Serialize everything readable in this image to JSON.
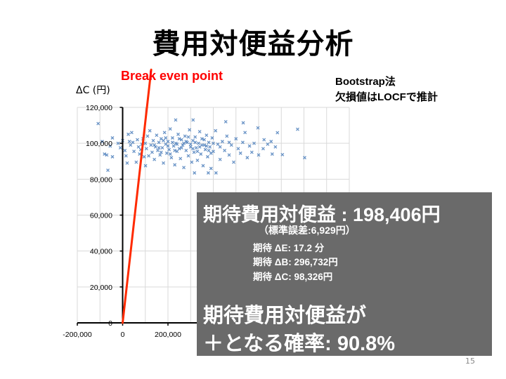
{
  "slide": {
    "title": "費用対便益分析",
    "page_number": "15",
    "annotation_break_even": "Break even point",
    "note_line1": "Bootstrap法",
    "note_line2": "欠損値はLOCFで推計"
  },
  "result_box": {
    "expected_cb": "期待費用対便益 : 198,406円",
    "std_error": "（標準誤差:6,929円）",
    "expected_de": "期待 ΔE: 17.2 分",
    "expected_db": "期待 ΔB: 296,732円",
    "expected_dc": "期待 ΔC: 98,326円",
    "prob_line1": "期待費用対便益が",
    "prob_line2": "＋となる確率: 90.8%",
    "background_color": "#6a6a6a"
  },
  "chart_data": {
    "type": "scatter",
    "ylabel": "ΔC (円)",
    "xlabel": "",
    "xlim": [
      -200000,
      1000000
    ],
    "ylim": [
      0,
      120000
    ],
    "x_ticks": [
      "-200,000",
      "0",
      "200,000"
    ],
    "y_ticks": [
      "0",
      "20,000",
      "40,000",
      "60,000",
      "80,000",
      "100,000",
      "120,000"
    ],
    "grid": true,
    "marker": "x",
    "point_color": "#4f81bd",
    "break_even_line": {
      "color": "#ff2a00",
      "from": [
        0,
        0
      ],
      "to": [
        126000,
        141000
      ]
    },
    "points": [
      [
        -108000,
        111000
      ],
      [
        -65000,
        85000
      ],
      [
        772000,
        107800
      ],
      [
        803000,
        92000
      ],
      [
        705000,
        93700
      ],
      [
        683000,
        105900
      ],
      [
        674000,
        98000
      ],
      [
        311000,
        113000
      ],
      [
        234000,
        113000
      ],
      [
        455000,
        112000
      ],
      [
        532000,
        111400
      ],
      [
        317000,
        83500
      ],
      [
        378000,
        83500
      ],
      [
        412000,
        83500
      ],
      [
        101000,
        87500
      ],
      [
        624000,
        102000
      ],
      [
        655000,
        101000
      ],
      [
        597000,
        108600
      ],
      [
        -90000,
        101000
      ],
      [
        -80000,
        94000
      ],
      [
        -70000,
        93500
      ],
      [
        -55000,
        98500
      ],
      [
        -45000,
        103000
      ],
      [
        -45000,
        92500
      ],
      [
        -20000,
        100000
      ],
      [
        -10000,
        97500
      ],
      [
        0,
        101500
      ],
      [
        10000,
        96000
      ],
      [
        15000,
        93000
      ],
      [
        20000,
        89000
      ],
      [
        25000,
        105000
      ],
      [
        30000,
        101000
      ],
      [
        35000,
        99000
      ],
      [
        40000,
        106000
      ],
      [
        45000,
        100500
      ],
      [
        50000,
        95500
      ],
      [
        60000,
        89500
      ],
      [
        65000,
        102000
      ],
      [
        70000,
        98000
      ],
      [
        75000,
        94000
      ],
      [
        80000,
        96500
      ],
      [
        85000,
        99500
      ],
      [
        90000,
        102500
      ],
      [
        95000,
        92500
      ],
      [
        100000,
        100000
      ],
      [
        105000,
        97000
      ],
      [
        110000,
        104000
      ],
      [
        115000,
        93000
      ],
      [
        120000,
        107000
      ],
      [
        125000,
        99000
      ],
      [
        130000,
        95000
      ],
      [
        135000,
        101500
      ],
      [
        140000,
        91000
      ],
      [
        145000,
        98000
      ],
      [
        150000,
        104500
      ],
      [
        155000,
        96000
      ],
      [
        160000,
        100500
      ],
      [
        165000,
        93500
      ],
      [
        170000,
        102500
      ],
      [
        175000,
        97500
      ],
      [
        180000,
        89000
      ],
      [
        185000,
        106000
      ],
      [
        190000,
        99500
      ],
      [
        195000,
        94500
      ],
      [
        200000,
        101000
      ],
      [
        205000,
        96500
      ],
      [
        210000,
        108000
      ],
      [
        215000,
        92000
      ],
      [
        220000,
        103000
      ],
      [
        225000,
        98500
      ],
      [
        230000,
        88000
      ],
      [
        235000,
        100000
      ],
      [
        240000,
        95500
      ],
      [
        245000,
        105000
      ],
      [
        250000,
        97000
      ],
      [
        255000,
        91500
      ],
      [
        260000,
        102000
      ],
      [
        265000,
        99000
      ],
      [
        270000,
        86500
      ],
      [
        275000,
        104000
      ],
      [
        280000,
        96000
      ],
      [
        285000,
        100500
      ],
      [
        290000,
        93000
      ],
      [
        295000,
        107500
      ],
      [
        300000,
        98000
      ],
      [
        305000,
        89500
      ],
      [
        310000,
        101500
      ],
      [
        315000,
        95000
      ],
      [
        320000,
        103500
      ],
      [
        325000,
        97500
      ],
      [
        330000,
        90500
      ],
      [
        335000,
        100000
      ],
      [
        340000,
        106500
      ],
      [
        345000,
        94000
      ],
      [
        350000,
        99000
      ],
      [
        355000,
        87500
      ],
      [
        360000,
        102000
      ],
      [
        365000,
        96500
      ],
      [
        370000,
        104500
      ],
      [
        375000,
        92500
      ],
      [
        380000,
        100500
      ],
      [
        385000,
        98000
      ],
      [
        390000,
        86000
      ],
      [
        395000,
        103000
      ],
      [
        400000,
        95500
      ],
      [
        410000,
        107000
      ],
      [
        420000,
        99500
      ],
      [
        430000,
        91000
      ],
      [
        440000,
        101000
      ],
      [
        450000,
        96000
      ],
      [
        460000,
        104000
      ],
      [
        470000,
        93500
      ],
      [
        480000,
        99000
      ],
      [
        490000,
        89500
      ],
      [
        500000,
        102500
      ],
      [
        510000,
        97000
      ],
      [
        520000,
        94500
      ],
      [
        530000,
        100500
      ],
      [
        540000,
        106000
      ],
      [
        550000,
        92000
      ],
      [
        560000,
        98500
      ],
      [
        570000,
        95000
      ],
      [
        580000,
        100000
      ],
      [
        600000,
        93500
      ],
      [
        620000,
        97000
      ],
      [
        640000,
        99500
      ],
      [
        660000,
        94000
      ],
      [
        140000,
        99000
      ],
      [
        160000,
        97500
      ],
      [
        180000,
        101500
      ],
      [
        200000,
        98500
      ],
      [
        220000,
        100500
      ],
      [
        240000,
        99500
      ],
      [
        260000,
        97500
      ],
      [
        280000,
        101000
      ],
      [
        300000,
        99500
      ],
      [
        320000,
        100500
      ],
      [
        340000,
        98000
      ],
      [
        360000,
        99000
      ],
      [
        380000,
        96000
      ],
      [
        400000,
        100000
      ],
      [
        170000,
        95000
      ],
      [
        210000,
        94000
      ],
      [
        250000,
        102500
      ],
      [
        290000,
        103500
      ],
      [
        330000,
        95500
      ],
      [
        370000,
        98500
      ],
      [
        190000,
        103000
      ],
      [
        230000,
        96000
      ],
      [
        270000,
        100000
      ],
      [
        310000,
        97000
      ],
      [
        350000,
        102500
      ],
      [
        390000,
        94500
      ],
      [
        430000,
        98000
      ],
      [
        470000,
        100500
      ]
    ]
  }
}
